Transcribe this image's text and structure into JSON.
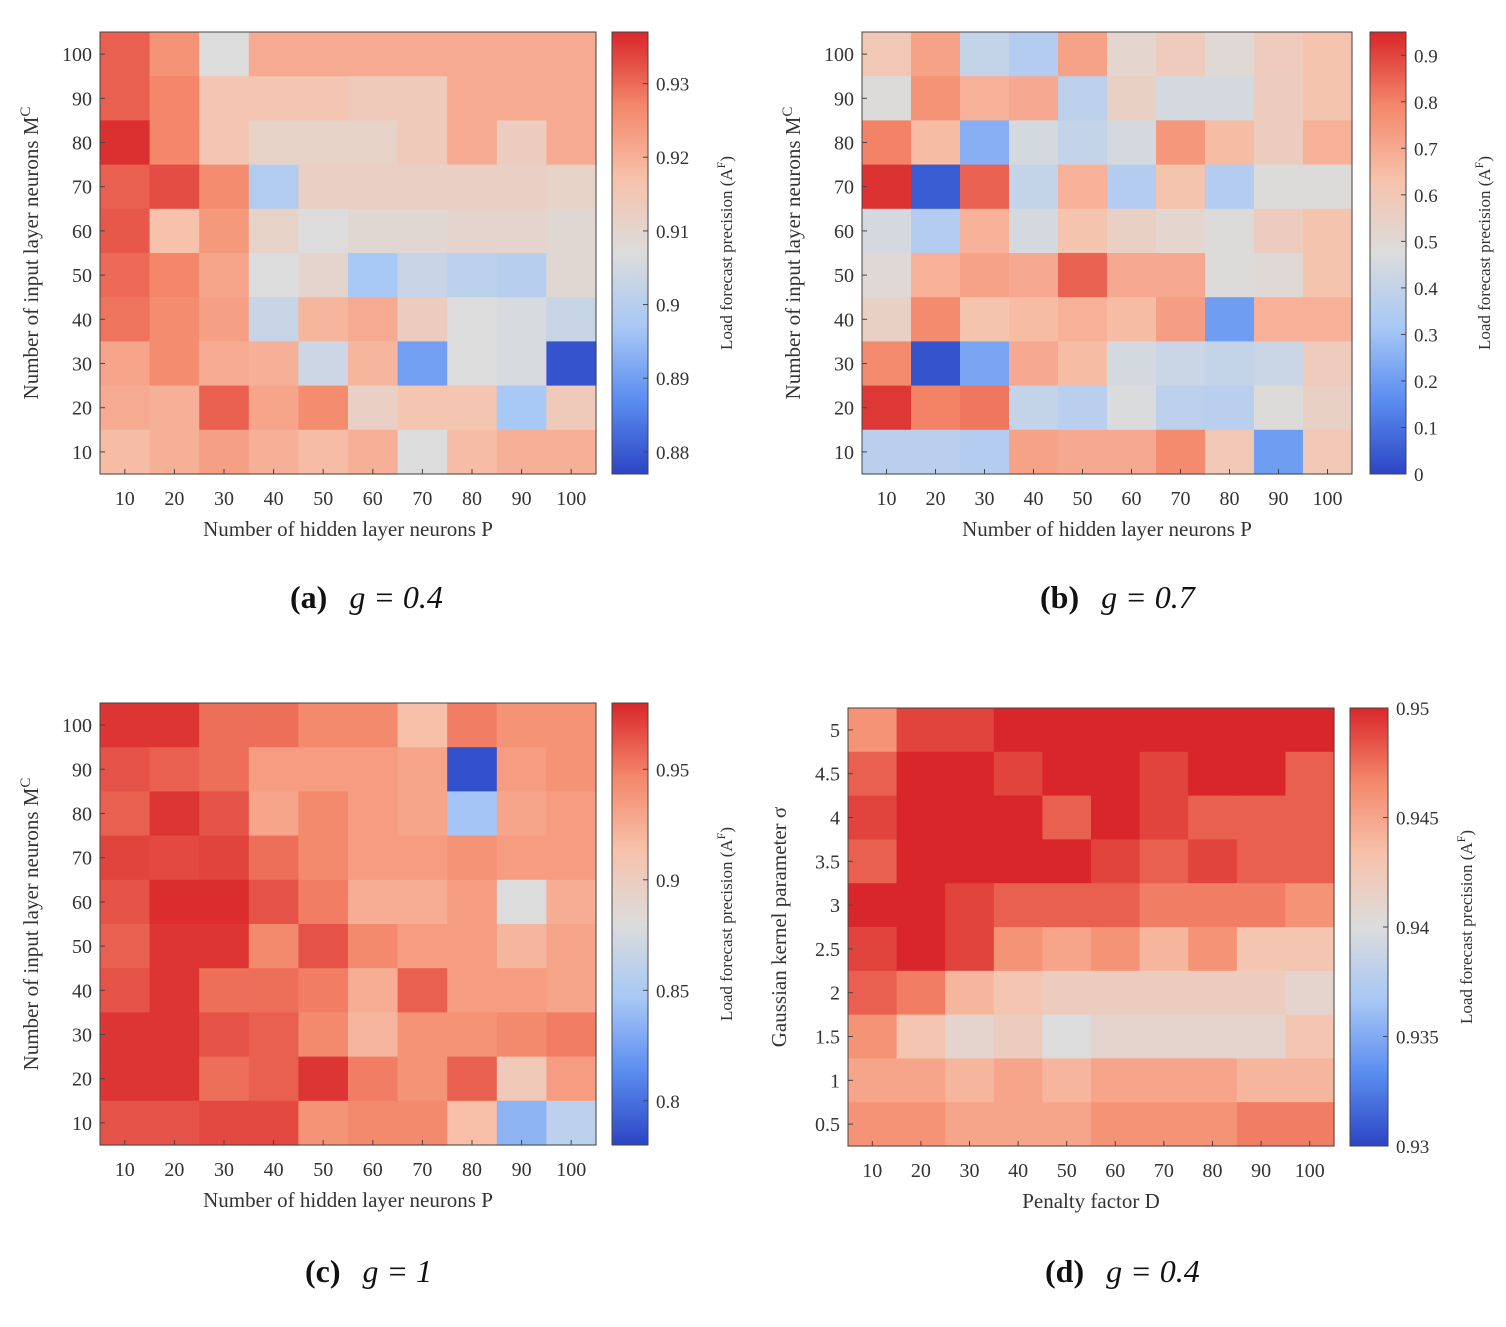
{
  "colormap": [
    "#2b45c4",
    "#5b8df0",
    "#a8c8f5",
    "#dcdcdc",
    "#f7c2ab",
    "#f4876a",
    "#d9262a"
  ],
  "chart_data": [
    {
      "type": "heatmap",
      "id": "a",
      "caption_letter": "(a)",
      "caption_eq": "g = 0.4",
      "x": [
        10,
        20,
        30,
        40,
        50,
        60,
        70,
        80,
        90,
        100
      ],
      "x_ticks": [
        "10",
        "20",
        "30",
        "40",
        "50",
        "60",
        "70",
        "80",
        "90",
        "100"
      ],
      "y": [
        10,
        20,
        30,
        40,
        50,
        60,
        70,
        80,
        90,
        100
      ],
      "y_ticks": [
        "10",
        "20",
        "30",
        "40",
        "50",
        "60",
        "70",
        "80",
        "90",
        "100"
      ],
      "xlabel": "Number of hidden layer neurons  P",
      "ylabel": "Number of input layer neurons  M",
      "ylabel_sup": "C",
      "colorbar_label": "Load forecast precision (A",
      "colorbar_label_sup": "F",
      "colorbar_label_end": ")",
      "clim": [
        0.877,
        0.937
      ],
      "colorbar_ticks": [
        0.88,
        0.89,
        0.9,
        0.91,
        0.92,
        0.93
      ],
      "colorbar_tick_labels": [
        "0.88",
        "0.89",
        "0.9",
        "0.91",
        "0.92",
        "0.93"
      ],
      "z": [
        [
          0.931,
          0.925,
          0.907,
          0.921,
          0.921,
          0.921,
          0.921,
          0.921,
          0.921,
          0.921
        ],
        [
          0.931,
          0.927,
          0.916,
          0.916,
          0.916,
          0.914,
          0.914,
          0.921,
          0.921,
          0.921
        ],
        [
          0.936,
          0.927,
          0.916,
          0.911,
          0.911,
          0.911,
          0.914,
          0.921,
          0.913,
          0.921
        ],
        [
          0.931,
          0.933,
          0.926,
          0.899,
          0.912,
          0.912,
          0.912,
          0.912,
          0.912,
          0.911
        ],
        [
          0.932,
          0.917,
          0.924,
          0.911,
          0.907,
          0.909,
          0.909,
          0.91,
          0.91,
          0.909
        ],
        [
          0.93,
          0.927,
          0.922,
          0.907,
          0.91,
          0.897,
          0.903,
          0.901,
          0.9,
          0.909
        ],
        [
          0.929,
          0.926,
          0.923,
          0.903,
          0.919,
          0.921,
          0.913,
          0.907,
          0.906,
          0.903
        ],
        [
          0.922,
          0.926,
          0.921,
          0.92,
          0.904,
          0.919,
          0.89,
          0.907,
          0.906,
          0.879
        ],
        [
          0.921,
          0.92,
          0.931,
          0.922,
          0.926,
          0.912,
          0.916,
          0.916,
          0.897,
          0.914
        ],
        [
          0.918,
          0.92,
          0.923,
          0.92,
          0.918,
          0.92,
          0.907,
          0.918,
          0.92,
          0.92
        ]
      ]
    },
    {
      "type": "heatmap",
      "id": "b",
      "caption_letter": "(b)",
      "caption_eq": "g = 0.7",
      "x": [
        10,
        20,
        30,
        40,
        50,
        60,
        70,
        80,
        90,
        100
      ],
      "x_ticks": [
        "10",
        "20",
        "30",
        "40",
        "50",
        "60",
        "70",
        "80",
        "90",
        "100"
      ],
      "y": [
        10,
        20,
        30,
        40,
        50,
        60,
        70,
        80,
        90,
        100
      ],
      "y_ticks": [
        "10",
        "20",
        "30",
        "40",
        "50",
        "60",
        "70",
        "80",
        "90",
        "100"
      ],
      "xlabel": "Number of hidden layer neurons  P",
      "ylabel": "Number of input layer neurons  M",
      "ylabel_sup": "C",
      "colorbar_label": "Load forecast precision (A",
      "colorbar_label_sup": "F",
      "colorbar_label_end": ")",
      "clim": [
        0,
        0.95
      ],
      "colorbar_ticks": [
        0,
        0.1,
        0.2,
        0.3,
        0.4,
        0.5,
        0.6,
        0.7,
        0.8,
        0.9
      ],
      "colorbar_tick_labels": [
        "0",
        "0.1",
        "0.2",
        "0.3",
        "0.4",
        "0.5",
        "0.6",
        "0.7",
        "0.8",
        "0.9"
      ],
      "z": [
        [
          0.6,
          0.72,
          0.4,
          0.35,
          0.72,
          0.52,
          0.58,
          0.5,
          0.58,
          0.62
        ],
        [
          0.48,
          0.76,
          0.68,
          0.7,
          0.38,
          0.55,
          0.45,
          0.45,
          0.57,
          0.62
        ],
        [
          0.8,
          0.65,
          0.25,
          0.45,
          0.4,
          0.45,
          0.75,
          0.65,
          0.57,
          0.68
        ],
        [
          0.93,
          0.05,
          0.85,
          0.4,
          0.68,
          0.35,
          0.62,
          0.35,
          0.48,
          0.48
        ],
        [
          0.45,
          0.35,
          0.68,
          0.45,
          0.62,
          0.55,
          0.52,
          0.48,
          0.57,
          0.62
        ],
        [
          0.5,
          0.68,
          0.72,
          0.7,
          0.85,
          0.7,
          0.7,
          0.48,
          0.5,
          0.62
        ],
        [
          0.55,
          0.78,
          0.62,
          0.65,
          0.68,
          0.65,
          0.73,
          0.2,
          0.68,
          0.68
        ],
        [
          0.78,
          0.03,
          0.22,
          0.7,
          0.65,
          0.45,
          0.42,
          0.4,
          0.42,
          0.58
        ],
        [
          0.92,
          0.8,
          0.82,
          0.4,
          0.37,
          0.47,
          0.38,
          0.37,
          0.48,
          0.55
        ],
        [
          0.37,
          0.37,
          0.35,
          0.72,
          0.7,
          0.7,
          0.78,
          0.6,
          0.2,
          0.6
        ]
      ]
    },
    {
      "type": "heatmap",
      "id": "c",
      "caption_letter": "(c)",
      "caption_eq": "g = 1",
      "x": [
        10,
        20,
        30,
        40,
        50,
        60,
        70,
        80,
        90,
        100
      ],
      "x_ticks": [
        "10",
        "20",
        "30",
        "40",
        "50",
        "60",
        "70",
        "80",
        "90",
        "100"
      ],
      "y": [
        10,
        20,
        30,
        40,
        50,
        60,
        70,
        80,
        90,
        100
      ],
      "y_ticks": [
        "10",
        "20",
        "30",
        "40",
        "50",
        "60",
        "70",
        "80",
        "90",
        "100"
      ],
      "xlabel": "Number of hidden layer neurons  P",
      "ylabel": "Number of input layer neurons  M",
      "ylabel_sup": "C",
      "colorbar_label": "Load forecast precision (A",
      "colorbar_label_sup": "F",
      "colorbar_label_end": ")",
      "clim": [
        0.78,
        0.98
      ],
      "colorbar_ticks": [
        0.8,
        0.85,
        0.9,
        0.95
      ],
      "colorbar_tick_labels": [
        "0.8",
        "0.85",
        "0.9",
        "0.95"
      ],
      "z": [
        [
          0.975,
          0.975,
          0.955,
          0.955,
          0.945,
          0.945,
          0.915,
          0.95,
          0.94,
          0.94
        ],
        [
          0.965,
          0.96,
          0.955,
          0.935,
          0.935,
          0.935,
          0.93,
          0.785,
          0.935,
          0.94
        ],
        [
          0.96,
          0.975,
          0.965,
          0.93,
          0.945,
          0.935,
          0.93,
          0.845,
          0.93,
          0.935
        ],
        [
          0.97,
          0.968,
          0.97,
          0.955,
          0.945,
          0.935,
          0.935,
          0.94,
          0.935,
          0.935
        ],
        [
          0.965,
          0.978,
          0.978,
          0.965,
          0.95,
          0.925,
          0.925,
          0.935,
          0.88,
          0.925
        ],
        [
          0.96,
          0.975,
          0.975,
          0.945,
          0.965,
          0.945,
          0.935,
          0.935,
          0.92,
          0.93
        ],
        [
          0.965,
          0.975,
          0.955,
          0.955,
          0.95,
          0.925,
          0.96,
          0.935,
          0.935,
          0.93
        ],
        [
          0.975,
          0.975,
          0.965,
          0.96,
          0.945,
          0.92,
          0.94,
          0.94,
          0.945,
          0.95
        ],
        [
          0.975,
          0.975,
          0.955,
          0.96,
          0.975,
          0.95,
          0.94,
          0.96,
          0.905,
          0.935
        ],
        [
          0.965,
          0.965,
          0.968,
          0.968,
          0.94,
          0.945,
          0.945,
          0.915,
          0.835,
          0.86
        ]
      ]
    },
    {
      "type": "heatmap",
      "id": "d",
      "caption_letter": "(d)",
      "caption_eq": "g = 0.4",
      "x": [
        10,
        20,
        30,
        40,
        50,
        60,
        70,
        80,
        90,
        100
      ],
      "x_ticks": [
        "10",
        "20",
        "30",
        "40",
        "50",
        "60",
        "70",
        "80",
        "90",
        "100"
      ],
      "y": [
        0.5,
        1,
        1.5,
        2,
        2.5,
        3,
        3.5,
        4,
        4.5,
        5
      ],
      "y_ticks": [
        "0.5",
        "1",
        "1.5",
        "2",
        "2.5",
        "3",
        "3.5",
        "4",
        "4.5",
        "5"
      ],
      "xlabel": "Penalty factor  D",
      "ylabel": "Gaussian kernel parameter  σ",
      "ylabel_sup": "",
      "colorbar_label": "Load forecast precision (A",
      "colorbar_label_sup": "F",
      "colorbar_label_end": ")",
      "clim": [
        0.93,
        0.95
      ],
      "colorbar_ticks": [
        0.93,
        0.935,
        0.94,
        0.945,
        0.95
      ],
      "colorbar_tick_labels": [
        "0.93",
        "0.935",
        "0.94",
        "0.945",
        "0.95"
      ],
      "z": [
        [
          0.946,
          0.949,
          0.949,
          0.95,
          0.95,
          0.95,
          0.95,
          0.95,
          0.95,
          0.95
        ],
        [
          0.948,
          0.95,
          0.95,
          0.949,
          0.95,
          0.95,
          0.949,
          0.95,
          0.95,
          0.948
        ],
        [
          0.949,
          0.95,
          0.95,
          0.95,
          0.948,
          0.95,
          0.949,
          0.948,
          0.948,
          0.948
        ],
        [
          0.948,
          0.95,
          0.95,
          0.95,
          0.95,
          0.949,
          0.948,
          0.949,
          0.948,
          0.948
        ],
        [
          0.95,
          0.95,
          0.949,
          0.948,
          0.948,
          0.948,
          0.947,
          0.947,
          0.947,
          0.946
        ],
        [
          0.949,
          0.95,
          0.949,
          0.946,
          0.945,
          0.946,
          0.944,
          0.946,
          0.943,
          0.943
        ],
        [
          0.948,
          0.947,
          0.944,
          0.943,
          0.942,
          0.942,
          0.942,
          0.942,
          0.942,
          0.941
        ],
        [
          0.946,
          0.943,
          0.941,
          0.942,
          0.94,
          0.941,
          0.941,
          0.941,
          0.941,
          0.943
        ],
        [
          0.945,
          0.945,
          0.944,
          0.945,
          0.944,
          0.945,
          0.945,
          0.945,
          0.944,
          0.944
        ],
        [
          0.946,
          0.946,
          0.945,
          0.945,
          0.945,
          0.946,
          0.946,
          0.946,
          0.947,
          0.947
        ]
      ]
    }
  ]
}
